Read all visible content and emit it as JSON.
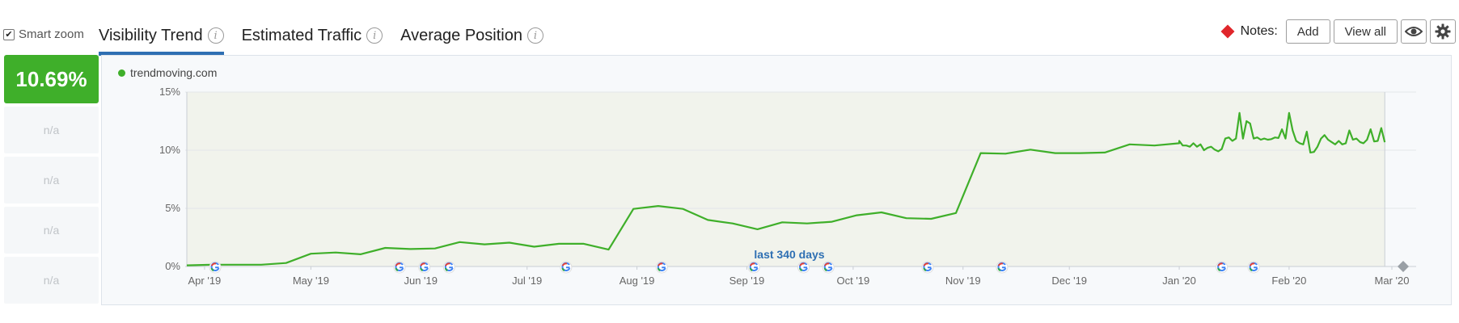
{
  "smart_zoom": {
    "label": "Smart zoom",
    "checked": true
  },
  "tabs": [
    {
      "label": "Visibility Trend",
      "active": true
    },
    {
      "label": "Estimated Traffic",
      "active": false
    },
    {
      "label": "Average Position",
      "active": false
    }
  ],
  "notes": {
    "label": "Notes:",
    "add_label": "Add",
    "view_all_label": "View all"
  },
  "score": {
    "value": "10.69%",
    "na_label": "n/a"
  },
  "colors": {
    "accent": "#3faf2a",
    "tab_underline": "#2e6fb3",
    "note_marker": "#e0262b",
    "range_label": "#2e6fb3"
  },
  "chart_data": {
    "type": "line",
    "legend": "trendmoving.com",
    "ylabel_ticks": [
      "0%",
      "5%",
      "10%",
      "15%"
    ],
    "ylim": [
      0,
      15
    ],
    "xlim": [
      "2019-03-27",
      "2020-03-01"
    ],
    "xticks": [
      {
        "label": "Apr '19",
        "date": "2019-04-01"
      },
      {
        "label": "May '19",
        "date": "2019-05-01"
      },
      {
        "label": "Jun '19",
        "date": "2019-06-01"
      },
      {
        "label": "Jul '19",
        "date": "2019-07-01"
      },
      {
        "label": "Aug '19",
        "date": "2019-08-01"
      },
      {
        "label": "Sep '19",
        "date": "2019-09-01"
      },
      {
        "label": "Oct '19",
        "date": "2019-10-01"
      },
      {
        "label": "Nov '19",
        "date": "2019-11-01"
      },
      {
        "label": "Dec '19",
        "date": "2019-12-01"
      },
      {
        "label": "Jan '20",
        "date": "2020-01-01"
      },
      {
        "label": "Feb '20",
        "date": "2020-02-01"
      },
      {
        "label": "Mar '20",
        "date": "2020-03-01"
      }
    ],
    "range_label": "last 340 days",
    "grid": true,
    "series": [
      {
        "name": "trendmoving.com",
        "points": [
          [
            "2019-03-27",
            0.1
          ],
          [
            "2019-04-03",
            0.15
          ],
          [
            "2019-04-17",
            0.15
          ],
          [
            "2019-04-24",
            0.3
          ],
          [
            "2019-05-01",
            1.1
          ],
          [
            "2019-05-08",
            1.2
          ],
          [
            "2019-05-15",
            1.05
          ],
          [
            "2019-05-22",
            1.6
          ],
          [
            "2019-05-29",
            1.5
          ],
          [
            "2019-06-05",
            1.55
          ],
          [
            "2019-06-12",
            2.1
          ],
          [
            "2019-06-19",
            1.9
          ],
          [
            "2019-06-26",
            2.05
          ],
          [
            "2019-07-03",
            1.7
          ],
          [
            "2019-07-10",
            1.95
          ],
          [
            "2019-07-17",
            1.95
          ],
          [
            "2019-07-24",
            1.45
          ],
          [
            "2019-07-31",
            4.95
          ],
          [
            "2019-08-07",
            5.2
          ],
          [
            "2019-08-14",
            4.95
          ],
          [
            "2019-08-21",
            4.0
          ],
          [
            "2019-08-28",
            3.7
          ],
          [
            "2019-09-04",
            3.2
          ],
          [
            "2019-09-11",
            3.8
          ],
          [
            "2019-09-18",
            3.7
          ],
          [
            "2019-09-25",
            3.85
          ],
          [
            "2019-10-02",
            4.4
          ],
          [
            "2019-10-09",
            4.65
          ],
          [
            "2019-10-16",
            4.15
          ],
          [
            "2019-10-23",
            4.1
          ],
          [
            "2019-10-30",
            4.6
          ],
          [
            "2019-11-06",
            9.75
          ],
          [
            "2019-11-13",
            9.7
          ],
          [
            "2019-11-20",
            10.05
          ],
          [
            "2019-11-27",
            9.75
          ],
          [
            "2019-12-04",
            9.75
          ],
          [
            "2019-12-11",
            9.8
          ],
          [
            "2019-12-18",
            10.5
          ],
          [
            "2019-12-25",
            10.4
          ],
          [
            "2020-01-01",
            10.6
          ],
          [
            "2020-01-01",
            10.8
          ],
          [
            "2020-01-02",
            10.4
          ],
          [
            "2020-01-03",
            10.4
          ],
          [
            "2020-01-04",
            10.3
          ],
          [
            "2020-01-05",
            10.6
          ],
          [
            "2020-01-06",
            10.3
          ],
          [
            "2020-01-07",
            10.5
          ],
          [
            "2020-01-08",
            10.0
          ],
          [
            "2020-01-09",
            10.2
          ],
          [
            "2020-01-10",
            10.3
          ],
          [
            "2020-01-11",
            10.05
          ],
          [
            "2020-01-12",
            9.9
          ],
          [
            "2020-01-13",
            10.1
          ],
          [
            "2020-01-14",
            11.0
          ],
          [
            "2020-01-15",
            11.1
          ],
          [
            "2020-01-16",
            10.8
          ],
          [
            "2020-01-17",
            11.0
          ],
          [
            "2020-01-18",
            13.2
          ],
          [
            "2020-01-19",
            11.0
          ],
          [
            "2020-01-20",
            12.5
          ],
          [
            "2020-01-21",
            12.3
          ],
          [
            "2020-01-22",
            11.0
          ],
          [
            "2020-01-23",
            11.1
          ],
          [
            "2020-01-24",
            10.9
          ],
          [
            "2020-01-25",
            11.0
          ],
          [
            "2020-01-26",
            10.9
          ],
          [
            "2020-01-27",
            10.95
          ],
          [
            "2020-01-28",
            11.1
          ],
          [
            "2020-01-29",
            11.05
          ],
          [
            "2020-01-30",
            11.8
          ],
          [
            "2020-01-31",
            11.0
          ],
          [
            "2020-02-01",
            13.2
          ],
          [
            "2020-02-02",
            11.7
          ],
          [
            "2020-02-03",
            10.8
          ],
          [
            "2020-02-04",
            10.6
          ],
          [
            "2020-02-05",
            10.5
          ],
          [
            "2020-02-06",
            11.6
          ],
          [
            "2020-02-07",
            9.8
          ],
          [
            "2020-02-08",
            9.85
          ],
          [
            "2020-02-09",
            10.3
          ],
          [
            "2020-02-10",
            11.0
          ],
          [
            "2020-02-11",
            11.3
          ],
          [
            "2020-02-12",
            10.9
          ],
          [
            "2020-02-13",
            10.7
          ],
          [
            "2020-02-14",
            10.5
          ],
          [
            "2020-02-15",
            10.8
          ],
          [
            "2020-02-16",
            10.5
          ],
          [
            "2020-02-17",
            10.6
          ],
          [
            "2020-02-18",
            11.7
          ],
          [
            "2020-02-19",
            10.9
          ],
          [
            "2020-02-20",
            11.0
          ],
          [
            "2020-02-21",
            10.7
          ],
          [
            "2020-02-22",
            10.6
          ],
          [
            "2020-02-23",
            10.9
          ],
          [
            "2020-02-24",
            11.8
          ],
          [
            "2020-02-25",
            10.75
          ],
          [
            "2020-02-26",
            10.8
          ],
          [
            "2020-02-27",
            11.9
          ],
          [
            "2020-02-28",
            10.69
          ]
        ]
      }
    ],
    "google_update_markers": [
      "2019-04-04",
      "2019-05-26",
      "2019-06-02",
      "2019-06-09",
      "2019-07-12",
      "2019-08-08",
      "2019-09-03",
      "2019-09-17",
      "2019-09-24",
      "2019-10-22",
      "2019-11-12",
      "2020-01-13",
      "2020-01-22"
    ]
  }
}
